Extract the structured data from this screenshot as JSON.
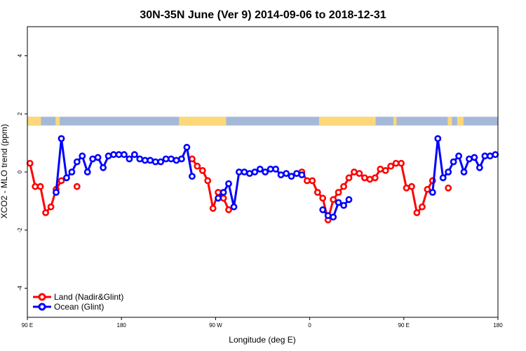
{
  "chart_data": {
    "type": "line",
    "title": "30N-35N June (Ver 9)   2014-09-06 to 2018-12-31",
    "xlabel": "Longitude (deg E)",
    "ylabel": "XCO2 - MLO trend (ppm)",
    "xlim": [
      90,
      540
    ],
    "ylim": [
      -5,
      5
    ],
    "x_ticks": [
      {
        "value": 90,
        "label": "90 E"
      },
      {
        "value": 180,
        "label": "180"
      },
      {
        "value": 270,
        "label": "90 W"
      },
      {
        "value": 360,
        "label": "0"
      },
      {
        "value": 450,
        "label": "90 E"
      },
      {
        "value": 540,
        "label": "180"
      }
    ],
    "y_ticks": [
      {
        "value": -4,
        "label": "-4"
      },
      {
        "value": -2,
        "label": "-2"
      },
      {
        "value": 0,
        "label": "0"
      },
      {
        "value": 2,
        "label": "2"
      },
      {
        "value": 4,
        "label": "4"
      }
    ],
    "legend": {
      "position": "bottom-left",
      "entries": [
        {
          "label": "Land (Nadir&Glint)",
          "color": "#ff0000"
        },
        {
          "label": "Ocean (Glint)",
          "color": "#0000ff"
        }
      ]
    },
    "land_ocean_band": {
      "y_range": [
        1.6,
        1.9
      ],
      "land_color": "#fdd878",
      "ocean_color": "#a4b9d8",
      "land_segments": [
        [
          90,
          103
        ],
        [
          117,
          121
        ],
        [
          235,
          280
        ],
        [
          369,
          423
        ],
        [
          440,
          443
        ],
        [
          492,
          496
        ],
        [
          501,
          507
        ]
      ]
    },
    "series": [
      {
        "name": "Land (Nadir&Glint)",
        "color": "#ff0000",
        "segments": [
          [
            [
              92.5,
              0.3
            ],
            [
              97.5,
              -0.5
            ],
            [
              102.5,
              -0.5
            ],
            [
              107.5,
              -1.4
            ],
            [
              112.5,
              -1.2
            ],
            [
              117.5,
              -0.6
            ],
            [
              122.5,
              -0.3
            ]
          ],
          [
            [
              137.5,
              -0.5
            ]
          ],
          [
            [
              247.5,
              0.45
            ],
            [
              252.5,
              0.2
            ],
            [
              257.5,
              0.05
            ],
            [
              262.5,
              -0.3
            ],
            [
              267.5,
              -1.25
            ],
            [
              272.5,
              -0.7
            ],
            [
              277.5,
              -0.9
            ],
            [
              282.5,
              -1.3
            ]
          ],
          [
            [
              352.5,
              0.0
            ],
            [
              357.5,
              -0.3
            ],
            [
              362.5,
              -0.3
            ],
            [
              367.5,
              -0.7
            ],
            [
              372.5,
              -0.9
            ],
            [
              377.5,
              -1.65
            ],
            [
              382.5,
              -0.95
            ],
            [
              387.5,
              -0.7
            ],
            [
              392.5,
              -0.5
            ],
            [
              397.5,
              -0.2
            ],
            [
              402.5,
              0.0
            ],
            [
              407.5,
              -0.05
            ],
            [
              412.5,
              -0.2
            ],
            [
              417.5,
              -0.25
            ],
            [
              422.5,
              -0.2
            ],
            [
              427.5,
              0.1
            ],
            [
              432.5,
              0.05
            ],
            [
              437.5,
              0.2
            ],
            [
              442.5,
              0.3
            ],
            [
              447.5,
              0.3
            ],
            [
              452.5,
              -0.55
            ],
            [
              457.5,
              -0.5
            ],
            [
              462.5,
              -1.4
            ],
            [
              467.5,
              -1.2
            ],
            [
              472.5,
              -0.6
            ],
            [
              477.5,
              -0.3
            ]
          ],
          [
            [
              492.5,
              -0.55
            ]
          ]
        ]
      },
      {
        "name": "Ocean (Glint)",
        "color": "#0000ff",
        "segments": [
          [
            [
              117.5,
              -0.7
            ],
            [
              122.5,
              1.15
            ],
            [
              127.5,
              -0.2
            ],
            [
              132.5,
              0.0
            ],
            [
              137.5,
              0.35
            ],
            [
              142.5,
              0.55
            ],
            [
              147.5,
              0.0
            ],
            [
              152.5,
              0.45
            ],
            [
              157.5,
              0.5
            ],
            [
              162.5,
              0.15
            ],
            [
              167.5,
              0.55
            ],
            [
              172.5,
              0.6
            ],
            [
              177.5,
              0.6
            ],
            [
              182.5,
              0.6
            ],
            [
              187.5,
              0.45
            ],
            [
              192.5,
              0.6
            ],
            [
              197.5,
              0.45
            ],
            [
              202.5,
              0.4
            ],
            [
              207.5,
              0.4
            ],
            [
              212.5,
              0.35
            ],
            [
              217.5,
              0.35
            ],
            [
              222.5,
              0.45
            ],
            [
              227.5,
              0.45
            ],
            [
              232.5,
              0.4
            ],
            [
              237.5,
              0.45
            ],
            [
              242.5,
              0.85
            ],
            [
              247.5,
              -0.15
            ]
          ],
          [
            [
              272.5,
              -0.9
            ],
            [
              277.5,
              -0.7
            ],
            [
              282.5,
              -0.4
            ],
            [
              287.5,
              -1.2
            ],
            [
              292.5,
              0.0
            ],
            [
              297.5,
              0.0
            ],
            [
              302.5,
              -0.05
            ],
            [
              307.5,
              0.0
            ],
            [
              312.5,
              0.1
            ],
            [
              317.5,
              0.0
            ],
            [
              322.5,
              0.1
            ],
            [
              327.5,
              0.1
            ],
            [
              332.5,
              -0.1
            ],
            [
              337.5,
              -0.05
            ],
            [
              342.5,
              -0.15
            ],
            [
              347.5,
              -0.05
            ],
            [
              352.5,
              -0.1
            ]
          ],
          [
            [
              372.5,
              -1.3
            ],
            [
              377.5,
              -1.5
            ],
            [
              382.5,
              -1.55
            ],
            [
              387.5,
              -1.05
            ],
            [
              392.5,
              -1.15
            ],
            [
              397.5,
              -0.95
            ]
          ],
          [
            [
              477.5,
              -0.7
            ],
            [
              482.5,
              1.15
            ],
            [
              487.5,
              -0.2
            ],
            [
              492.5,
              0.0
            ],
            [
              497.5,
              0.35
            ],
            [
              502.5,
              0.55
            ],
            [
              507.5,
              0.0
            ],
            [
              512.5,
              0.45
            ],
            [
              517.5,
              0.5
            ],
            [
              522.5,
              0.15
            ],
            [
              527.5,
              0.55
            ],
            [
              532.5,
              0.55
            ],
            [
              537.5,
              0.6
            ]
          ]
        ]
      }
    ]
  }
}
